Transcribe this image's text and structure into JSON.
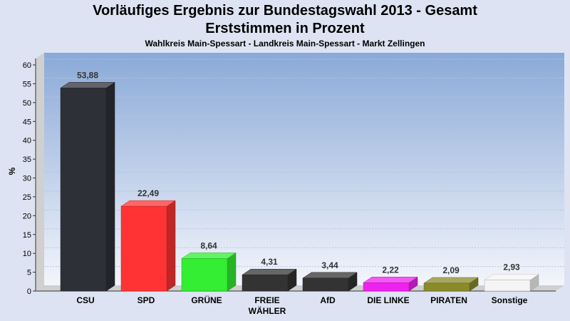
{
  "chart_data": {
    "type": "bar",
    "title": "Vorläufiges Ergebnis zur Bundestagswahl 2013 - Gesamt",
    "title_line2": "Erststimmen in Prozent",
    "subtitle": "Wahlkreis Main-Spessart - Landkreis Main-Spessart - Markt Zellingen",
    "ylabel": "%",
    "ylim": [
      0,
      60
    ],
    "yticks": [
      0,
      5,
      10,
      15,
      20,
      25,
      30,
      35,
      40,
      45,
      50,
      55,
      60
    ],
    "grid": true,
    "categories": [
      [
        "CSU"
      ],
      [
        "SPD"
      ],
      [
        "GRÜNE"
      ],
      [
        "FREIE",
        "WÄHLER"
      ],
      [
        "AfD"
      ],
      [
        "DIE LINKE"
      ],
      [
        "PIRATEN"
      ],
      [
        "Sonstige"
      ]
    ],
    "values": [
      53.88,
      22.49,
      8.64,
      4.31,
      3.44,
      2.22,
      2.09,
      2.93
    ],
    "value_labels": [
      "53,88",
      "22,49",
      "8,64",
      "4,31",
      "3,44",
      "2,22",
      "2,09",
      "2,93"
    ],
    "colors": [
      "#2e3038",
      "#ff3333",
      "#33ee33",
      "#333333",
      "#333333",
      "#ee22ee",
      "#8a8a2a",
      "#f4f4f4"
    ]
  }
}
